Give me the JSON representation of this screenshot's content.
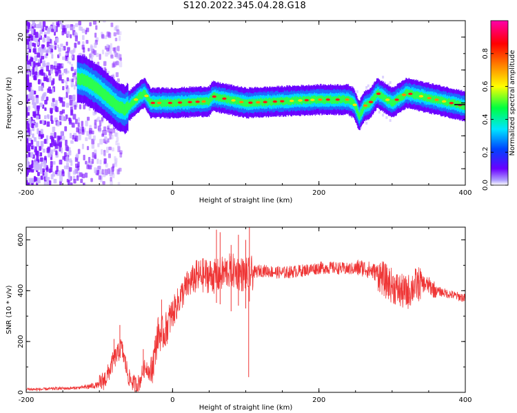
{
  "title": "S120.2022.345.04.28.G18",
  "chart_data": [
    {
      "type": "heatmap",
      "title": "",
      "xlabel": "Height of straight line (km)",
      "ylabel": "Frequency (Hz)",
      "xlim": [
        -200,
        400
      ],
      "ylim": [
        -25,
        25
      ],
      "x_ticks": [
        -200,
        0,
        200,
        400
      ],
      "y_ticks": [
        -20,
        -10,
        0,
        10,
        20
      ],
      "colorbar": {
        "label": "Normalized spectral amplitude",
        "range": [
          0,
          1
        ],
        "ticks": [
          0.0,
          0.2,
          0.4,
          0.6,
          0.8
        ],
        "colors": [
          "#ffffff",
          "#6a00ff",
          "#0044ff",
          "#00e5ff",
          "#00ff40",
          "#ffff00",
          "#ff8000",
          "#ff0000",
          "#ff00aa"
        ]
      },
      "ridge_frequency": {
        "x": [
          -200,
          -170,
          -140,
          -120,
          -100,
          -85,
          -75,
          -65,
          -55,
          -45,
          -38,
          -30,
          0,
          50,
          55,
          100,
          150,
          200,
          240,
          248,
          255,
          262,
          270,
          280,
          300,
          320,
          340,
          360,
          380,
          400
        ],
        "y": [
          12,
          10,
          8,
          7,
          4,
          1,
          -1,
          -2,
          0,
          2,
          3,
          0,
          0,
          0.5,
          2,
          0,
          0.5,
          1,
          1,
          0,
          -4,
          -1,
          0,
          3,
          0,
          3,
          2,
          1,
          0,
          -1
        ]
      },
      "grid": false
    },
    {
      "type": "line",
      "title": "",
      "xlabel": "Height of straight line (km)",
      "ylabel": "SNR (10 * v/v)",
      "xlim": [
        -200,
        400
      ],
      "ylim": [
        0,
        650
      ],
      "x_ticks": [
        -200,
        0,
        200,
        400
      ],
      "y_ticks": [
        0,
        200,
        400,
        600
      ],
      "color": "#ef3535",
      "series": [
        {
          "x": [
            -200,
            -180,
            -160,
            -140,
            -120,
            -110,
            -100,
            -90,
            -80,
            -75,
            -70,
            -65,
            -60,
            -55,
            -50,
            -45,
            -40,
            -35,
            -30,
            -25,
            -20,
            -15,
            -10,
            -5,
            0,
            10,
            20,
            30,
            40,
            50,
            60,
            70,
            80,
            90,
            100,
            110,
            120,
            150,
            180,
            200,
            220,
            240,
            260,
            280,
            290,
            300,
            310,
            320,
            330,
            340,
            350,
            360,
            380,
            400
          ],
          "y": [
            12,
            12,
            15,
            16,
            20,
            25,
            30,
            60,
            130,
            150,
            180,
            120,
            60,
            40,
            30,
            40,
            90,
            100,
            70,
            140,
            230,
            230,
            240,
            280,
            310,
            370,
            420,
            450,
            460,
            460,
            455,
            470,
            480,
            470,
            460,
            470,
            480,
            470,
            480,
            490,
            490,
            485,
            490,
            470,
            440,
            420,
            400,
            390,
            420,
            430,
            420,
            400,
            385,
            370
          ]
        }
      ],
      "peaks": {
        "x": [
          -80,
          -72,
          -40,
          -15,
          60,
          65,
          80,
          90,
          100,
          105
        ],
        "y": [
          210,
          265,
          170,
          365,
          640,
          630,
          580,
          620,
          600,
          650
        ]
      },
      "grid": false
    }
  ]
}
